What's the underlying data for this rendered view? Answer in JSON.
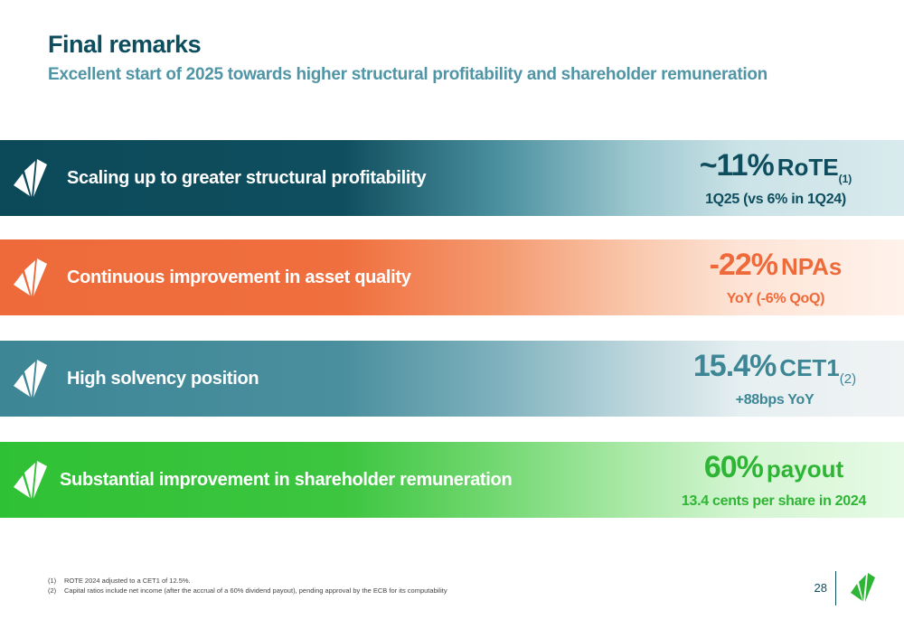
{
  "header": {
    "title": "Final remarks",
    "subtitle": "Excellent start of 2025 towards higher structural profitability and shareholder remuneration"
  },
  "bands": [
    {
      "label": "Scaling up to greater structural profitability",
      "metric_value": "~11%",
      "metric_unit": "RoTE",
      "metric_note": "(1)",
      "metric_sub": "1Q25 (vs 6% in 1Q24)",
      "color": "#0e4d5e"
    },
    {
      "label": "Continuous improvement in asset quality",
      "metric_value": "-22%",
      "metric_unit": "NPAs",
      "metric_sub": "YoY (-6% QoQ)",
      "color": "#ee6a3a"
    },
    {
      "label": "High solvency position",
      "metric_value": "15.4%",
      "metric_unit": "CET1",
      "metric_note": "(2)",
      "metric_sub": "+88bps YoY",
      "color": "#3d8696"
    },
    {
      "label": "Substantial improvement in shareholder remuneration",
      "metric_value": "60%",
      "metric_unit": "payout",
      "metric_sub": "13.4 cents per share in 2024",
      "color": "#2fb535"
    }
  ],
  "footnotes": [
    {
      "mark": "(1)",
      "text": "ROTE 2024 adjusted to a CET1 of 12.5%."
    },
    {
      "mark": "(2)",
      "text": "Capital ratios include net income (after the accrual of a 60% dividend payout), pending approval by the ECB for its computability"
    }
  ],
  "footer": {
    "page_number": "28",
    "logo_icon": "bank-logo-icon"
  },
  "colors": {
    "dark_teal": "#0e4d5e",
    "orange": "#ee6a3a",
    "teal": "#3d8696",
    "green": "#2fb535"
  }
}
